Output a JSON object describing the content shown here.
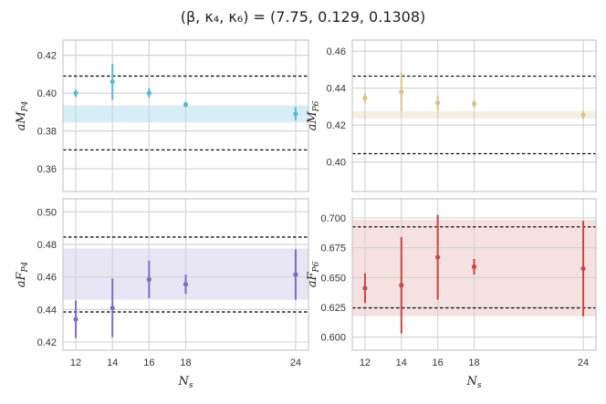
{
  "figure": {
    "title": "(β, κ₄, κ₆) = (7.75, 0.129, 0.1308)"
  },
  "chart_data": [
    {
      "type": "scatter",
      "panel": "top-left",
      "ylabel": "aM_P4",
      "xlabel": "",
      "x_ticks": [
        12,
        14,
        16,
        18,
        24
      ],
      "show_x_tick_labels": false,
      "ylim": [
        0.348,
        0.428
      ],
      "y_ticks": [
        0.36,
        0.38,
        0.4,
        0.42
      ],
      "y_tick_labels": [
        "0.36",
        "0.38",
        "0.40",
        "0.42"
      ],
      "color": "#5bb8d6",
      "series": [
        {
          "x": [
            12,
            14,
            16,
            18,
            24
          ],
          "y": [
            0.4,
            0.406,
            0.4,
            0.394,
            0.389
          ],
          "yerr": [
            0.002,
            0.0095,
            0.0025,
            0.0015,
            0.0035
          ]
        }
      ],
      "band": {
        "low": 0.3845,
        "high": 0.3935,
        "color": "#b6e0ee"
      },
      "dashed_lines": [
        0.409,
        0.37
      ],
      "grid": true
    },
    {
      "type": "scatter",
      "panel": "top-right",
      "ylabel": "aM_P6",
      "xlabel": "",
      "x_ticks": [
        12,
        14,
        16,
        18,
        24
      ],
      "show_x_tick_labels": false,
      "ylim": [
        0.384,
        0.466
      ],
      "y_ticks": [
        0.4,
        0.42,
        0.44,
        0.46
      ],
      "y_tick_labels": [
        "0.40",
        "0.42",
        "0.44",
        "0.46"
      ],
      "color": "#d6c48c",
      "series": [
        {
          "x": [
            12,
            14,
            16,
            18,
            24
          ],
          "y": [
            0.4345,
            0.438,
            0.432,
            0.4315,
            0.4255
          ],
          "yerr": [
            0.0025,
            0.0105,
            0.004,
            0.002,
            0.002
          ]
        }
      ],
      "band": {
        "low": 0.4235,
        "high": 0.4275,
        "color": "#ece3c4"
      },
      "dashed_lines": [
        0.4465,
        0.4045
      ],
      "grid": true
    },
    {
      "type": "scatter",
      "panel": "bottom-left",
      "ylabel": "aF_P4",
      "xlabel": "N_s",
      "x_ticks": [
        12,
        14,
        16,
        18,
        24
      ],
      "x_tick_labels": [
        "12",
        "14",
        "16",
        "18",
        "24"
      ],
      "show_x_tick_labels": true,
      "ylim": [
        0.415,
        0.508
      ],
      "y_ticks": [
        0.42,
        0.44,
        0.46,
        0.48,
        0.5
      ],
      "y_tick_labels": [
        "0.42",
        "0.44",
        "0.46",
        "0.48",
        "0.50"
      ],
      "color": "#7b6fc0",
      "series": [
        {
          "x": [
            12,
            14,
            16,
            18,
            24
          ],
          "y": [
            0.434,
            0.441,
            0.4585,
            0.4555,
            0.4615
          ],
          "yerr": [
            0.0115,
            0.018,
            0.0115,
            0.006,
            0.0155
          ]
        }
      ],
      "band": {
        "low": 0.446,
        "high": 0.4775,
        "color": "#d5d1eb"
      },
      "dashed_lines": [
        0.4845,
        0.4385
      ],
      "grid": true
    },
    {
      "type": "scatter",
      "panel": "bottom-right",
      "ylabel": "aF_P6",
      "xlabel": "N_s",
      "x_ticks": [
        12,
        14,
        16,
        18,
        24
      ],
      "x_tick_labels": [
        "12",
        "14",
        "16",
        "18",
        "24"
      ],
      "show_x_tick_labels": true,
      "ylim": [
        0.589,
        0.716
      ],
      "y_ticks": [
        0.6,
        0.625,
        0.65,
        0.675,
        0.7
      ],
      "y_tick_labels": [
        "0.600",
        "0.625",
        "0.650",
        "0.675",
        "0.700"
      ],
      "color": "#cc4444",
      "series": [
        {
          "x": [
            12,
            14,
            16,
            18,
            24
          ],
          "y": [
            0.641,
            0.6435,
            0.667,
            0.659,
            0.6575
          ],
          "yerr": [
            0.0125,
            0.0405,
            0.0355,
            0.0065,
            0.04
          ]
        }
      ],
      "band": {
        "low": 0.6175,
        "high": 0.6985,
        "color": "#efc9c9"
      },
      "dashed_lines": [
        0.6925,
        0.6245
      ],
      "grid": true
    }
  ]
}
